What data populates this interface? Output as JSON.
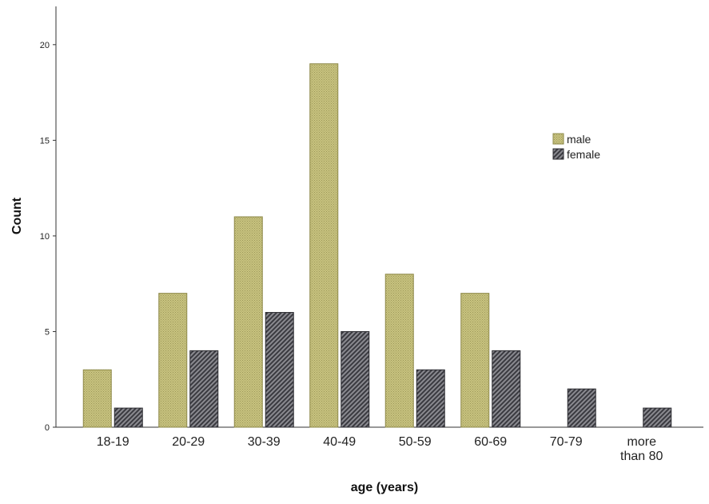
{
  "chart_data": {
    "type": "bar",
    "title": "",
    "xlabel": "age (years)",
    "ylabel": "Count",
    "categories": [
      "18-19",
      "20-29",
      "30-39",
      "40-49",
      "50-59",
      "60-69",
      "70-79",
      "more than 80"
    ],
    "series": [
      {
        "name": "male",
        "values": [
          3,
          7,
          11,
          19,
          8,
          7,
          0,
          0
        ],
        "color": "#c8c37f"
      },
      {
        "name": "female",
        "values": [
          1,
          4,
          6,
          5,
          3,
          4,
          2,
          1
        ],
        "color": "#55555c"
      }
    ],
    "ylim": [
      0,
      22
    ],
    "yticks": [
      0,
      5,
      10,
      15,
      20
    ],
    "grid": false,
    "legend_position": "top-right"
  }
}
